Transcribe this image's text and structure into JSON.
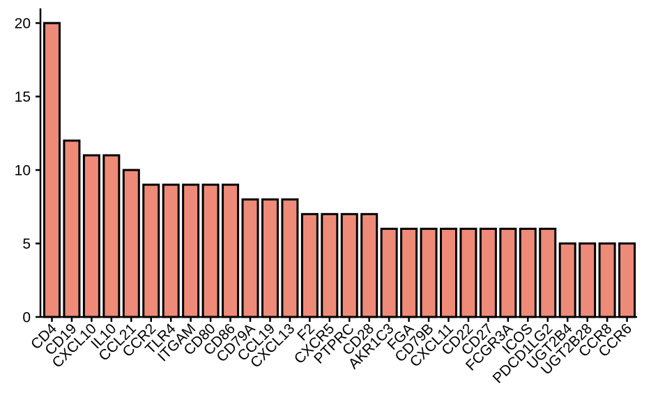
{
  "chart_data": {
    "type": "bar",
    "title": "",
    "xlabel": "",
    "ylabel": "",
    "categories": [
      "CD4",
      "CD19",
      "CXCL10",
      "IL10",
      "CCL21",
      "CCR2",
      "TLR4",
      "ITGAM",
      "CD80",
      "CD86",
      "CD79A",
      "CCL19",
      "CXCL13",
      "F2",
      "CXCR5",
      "PTPRC",
      "CD28",
      "AKR1C3",
      "FGA",
      "CD79B",
      "CXCL11",
      "CD22",
      "CD27",
      "FCGR3A",
      "ICOS",
      "PDCD1LG2",
      "UGT2B4",
      "UGT2B28",
      "CCR8",
      "CCR6"
    ],
    "values": [
      20,
      12,
      11,
      11,
      10,
      9,
      9,
      9,
      9,
      9,
      8,
      8,
      8,
      7,
      7,
      7,
      7,
      6,
      6,
      6,
      6,
      6,
      6,
      6,
      6,
      6,
      5,
      5,
      5,
      5
    ],
    "ylim": [
      0,
      21
    ],
    "yticks": [
      0,
      5,
      10,
      15,
      20
    ],
    "grid": false,
    "bar_color": "#ee8a78",
    "edge_color": "#000000"
  }
}
